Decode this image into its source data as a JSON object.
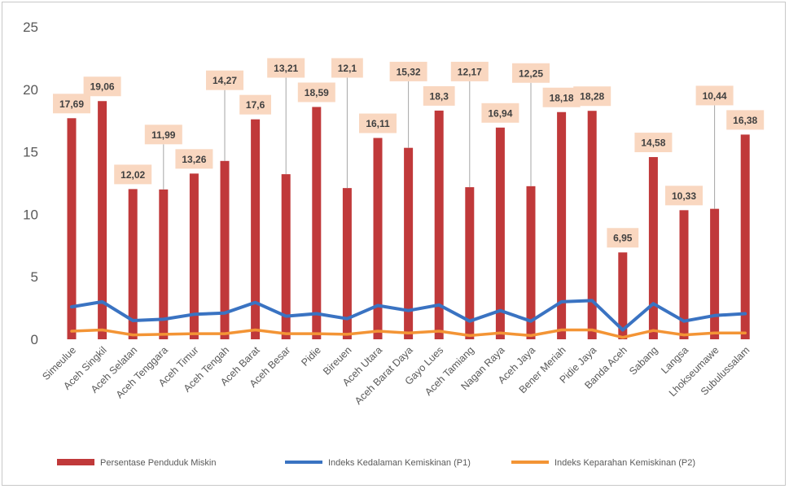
{
  "chart_data": {
    "type": "bar",
    "title": "",
    "xlabel": "",
    "ylabel": "",
    "ylim": [
      0,
      25
    ],
    "yticks": [
      0,
      5,
      10,
      15,
      20,
      25
    ],
    "grid": false,
    "legend_position": "bottom",
    "categories": [
      "Simeulue",
      "Aceh Singkil",
      "Aceh Selatan",
      "Aceh Tenggara",
      "Aceh Timur",
      "Aceh Tengah",
      "Aceh Barat",
      "Aceh Besar",
      "Pidie",
      "Bireuen",
      "Aceh Utara",
      "Aceh Barat Daya",
      "Gayo Lues",
      "Aceh Tamiang",
      "Nagan Raya",
      "Aceh Jaya",
      "Bener Meriah",
      "Pidie Jaya",
      "Banda Aceh",
      "Sabang",
      "Langsa",
      "Lhokseumawe",
      "Subulussalam"
    ],
    "series": [
      {
        "name": "Persentase Penduduk Miskin",
        "kind": "bar",
        "color": "#c0393a",
        "values": [
          17.69,
          19.06,
          12.02,
          11.99,
          13.26,
          14.27,
          17.6,
          13.21,
          18.59,
          12.1,
          16.11,
          15.32,
          18.3,
          12.17,
          16.94,
          12.25,
          18.18,
          18.28,
          6.95,
          14.58,
          10.33,
          10.44,
          16.38
        ],
        "labels": [
          "17,69",
          "19,06",
          "12,02",
          "11,99",
          "13,26",
          "14,27",
          "17,6",
          "13,21",
          "18,59",
          "12,1",
          "16,11",
          "15,32",
          "18,3",
          "12,17",
          "16,94",
          "12,25",
          "18,18",
          "18,28",
          "6,95",
          "14,58",
          "10,33",
          "10,44",
          "16,38"
        ]
      },
      {
        "name": "Indeks Kedalaman Kemiskinan (P1)",
        "kind": "line",
        "color": "#3a73c2",
        "values": [
          2.6,
          3.0,
          1.5,
          1.6,
          2.0,
          2.1,
          2.95,
          1.85,
          2.05,
          1.65,
          2.7,
          2.3,
          2.75,
          1.45,
          2.3,
          1.45,
          3.0,
          3.1,
          0.75,
          2.85,
          1.45,
          1.9,
          2.05
        ]
      },
      {
        "name": "Indeks Keparahan Kemiskinan (P2)",
        "kind": "line",
        "color": "#f39435",
        "values": [
          0.65,
          0.75,
          0.35,
          0.4,
          0.45,
          0.45,
          0.75,
          0.45,
          0.45,
          0.4,
          0.65,
          0.5,
          0.65,
          0.3,
          0.5,
          0.3,
          0.75,
          0.75,
          0.15,
          0.7,
          0.35,
          0.5,
          0.5
        ]
      }
    ]
  }
}
